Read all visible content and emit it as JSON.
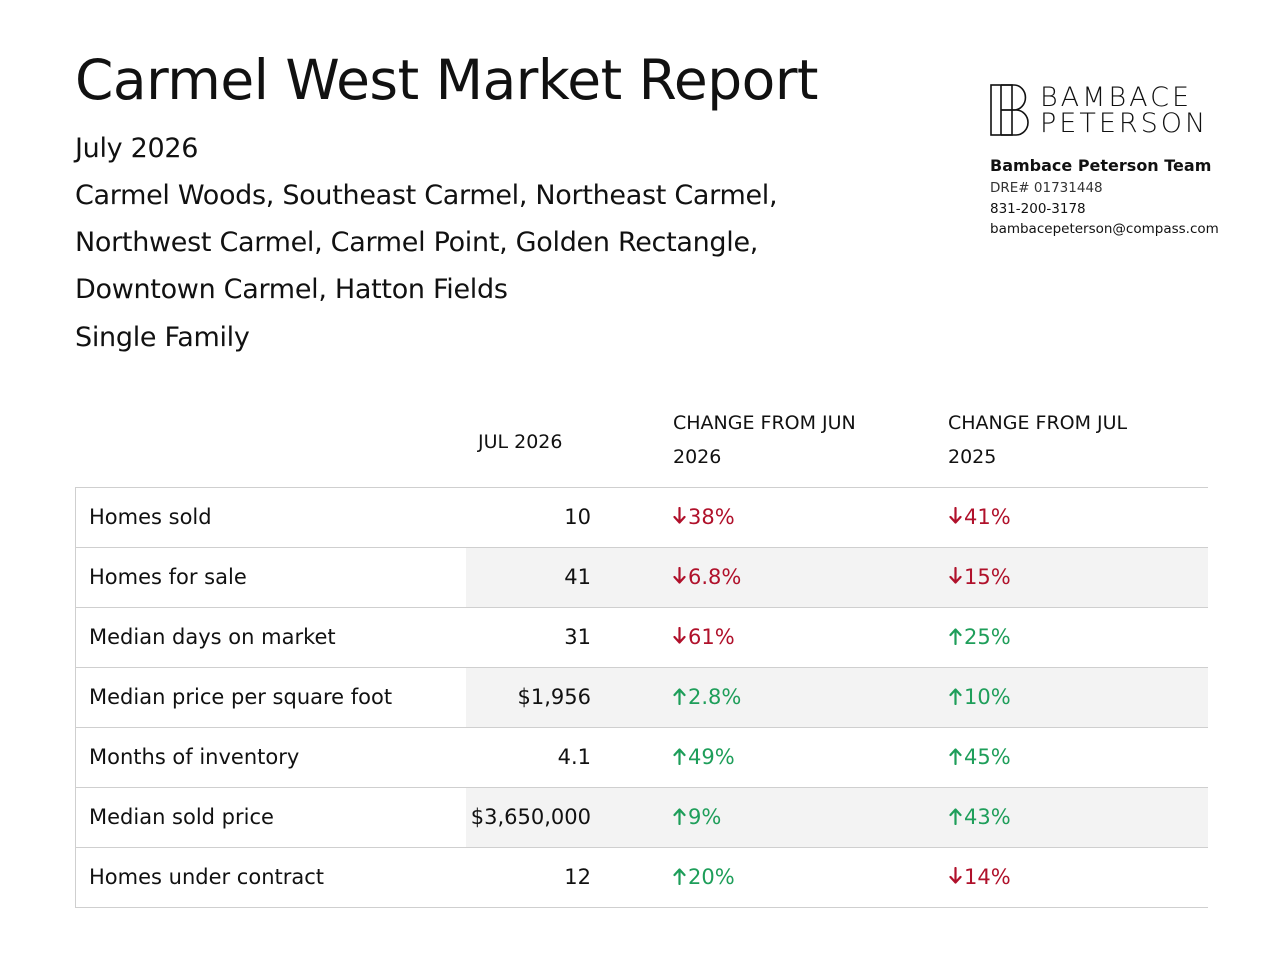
{
  "report": {
    "title": "Carmel West Market Report",
    "period": "July 2026",
    "neighborhoods": [
      "Carmel Woods, Southeast Carmel, Northeast Carmel,",
      "Northwest Carmel, Carmel Point, Golden Rectangle,",
      "Downtown Carmel, Hatton Fields"
    ],
    "property_type": "Single Family"
  },
  "brand": {
    "logo_line1": "BAMBACE",
    "logo_line2": "PETERSON",
    "team_name": "Bambace Peterson Team",
    "dre": "DRE# 01731448",
    "phone": "831-200-3178",
    "email": "bambacepeterson@compass.com"
  },
  "table": {
    "headers": {
      "current": "JUL 2026",
      "change_month_line1": "CHANGE FROM JUN",
      "change_month_line2": "2026",
      "change_year_line1": "CHANGE FROM JUL",
      "change_year_line2": "2025"
    },
    "rows": [
      {
        "label": "Homes sold",
        "value": "10",
        "mom": "38%",
        "mom_dir": "down",
        "yoy": "41%",
        "yoy_dir": "down"
      },
      {
        "label": "Homes for sale",
        "value": "41",
        "mom": "6.8%",
        "mom_dir": "down",
        "yoy": "15%",
        "yoy_dir": "down"
      },
      {
        "label": "Median days on market",
        "value": "31",
        "mom": "61%",
        "mom_dir": "down",
        "yoy": "25%",
        "yoy_dir": "up"
      },
      {
        "label": "Median price per square foot",
        "value": "$1,956",
        "mom": "2.8%",
        "mom_dir": "up",
        "yoy": "10%",
        "yoy_dir": "up"
      },
      {
        "label": "Months of inventory",
        "value": "4.1",
        "mom": "49%",
        "mom_dir": "up",
        "yoy": "45%",
        "yoy_dir": "up"
      },
      {
        "label": "Median sold price",
        "value": "$3,650,000",
        "mom": "9%",
        "mom_dir": "up",
        "yoy": "43%",
        "yoy_dir": "up"
      },
      {
        "label": "Homes under contract",
        "value": "12",
        "mom": "20%",
        "mom_dir": "up",
        "yoy": "14%",
        "yoy_dir": "down"
      }
    ],
    "colors": {
      "up": "#1e9e5a",
      "down": "#b0112b"
    }
  }
}
